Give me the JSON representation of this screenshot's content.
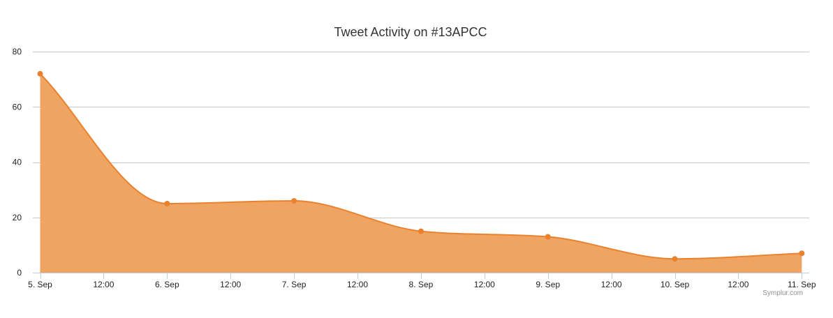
{
  "chart_data": {
    "type": "area",
    "title": "Tweet Activity on #13APCC",
    "credit": "Symplur.com",
    "x_tick_labels": [
      "5. Sep",
      "12:00",
      "6. Sep",
      "12:00",
      "7. Sep",
      "12:00",
      "8. Sep",
      "12:00",
      "9. Sep",
      "12:00",
      "10. Sep",
      "12:00",
      "11. Sep"
    ],
    "y_ticks": [
      0,
      20,
      40,
      60,
      80
    ],
    "ylim": [
      0,
      80
    ],
    "grid": true,
    "legend": false,
    "series": [
      {
        "x": [
          "5. Sep",
          "6. Sep",
          "7. Sep",
          "8. Sep",
          "9. Sep",
          "10. Sep",
          "11. Sep"
        ],
        "values": [
          72,
          25,
          26,
          15,
          13,
          5,
          7
        ]
      }
    ],
    "colors": {
      "fill": "#f0a462",
      "line": "#e8822f",
      "marker": "#e8822f"
    }
  }
}
